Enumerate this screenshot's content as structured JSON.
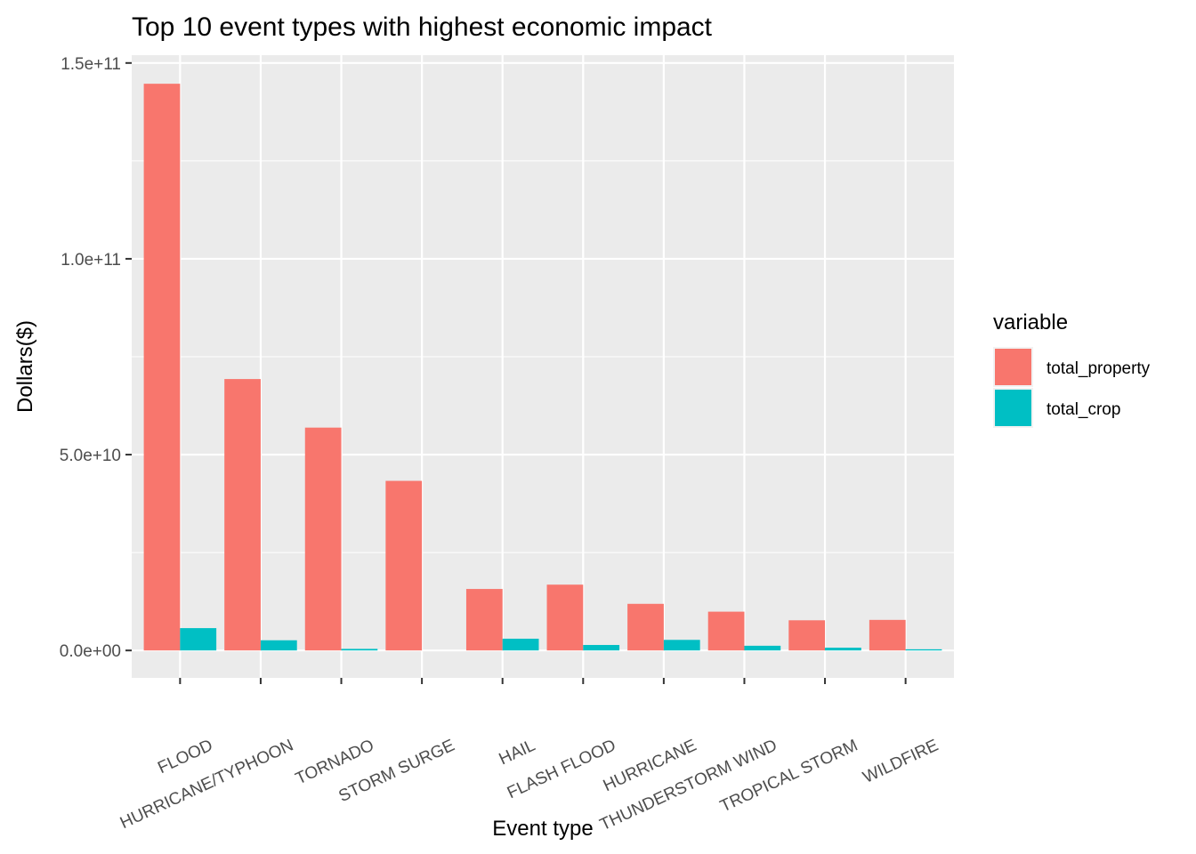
{
  "chart_data": {
    "type": "bar",
    "title": "Top 10 event types with highest economic impact",
    "xlabel": "Event type",
    "ylabel": "Dollars($)",
    "categories": [
      "FLOOD",
      "HURRICANE/TYPHOON",
      "TORNADO",
      "STORM SURGE",
      "HAIL",
      "FLASH FLOOD",
      "HURRICANE",
      "THUNDERSTORM WIND",
      "TROPICAL STORM",
      "WILDFIRE"
    ],
    "series": [
      {
        "name": "total_property",
        "color": "#F8766D",
        "values": [
          144700000000,
          69300000000,
          56900000000,
          43300000000,
          15700000000,
          16800000000,
          11900000000,
          9900000000,
          7700000000,
          7800000000
        ]
      },
      {
        "name": "total_crop",
        "color": "#00BFC4",
        "values": [
          5700000000,
          2600000000,
          400000000,
          0,
          3000000000,
          1400000000,
          2700000000,
          1200000000,
          700000000,
          300000000
        ]
      }
    ],
    "ylim": [
      -7000000000,
      152000000000
    ],
    "yticks": [
      0,
      50000000000,
      100000000000,
      150000000000
    ],
    "ytick_labels": [
      "0.0e+00",
      "5.0e+10",
      "1.0e+11",
      "1.5e+11"
    ],
    "legend": {
      "title": "variable",
      "placement": "right"
    },
    "grid": true
  }
}
